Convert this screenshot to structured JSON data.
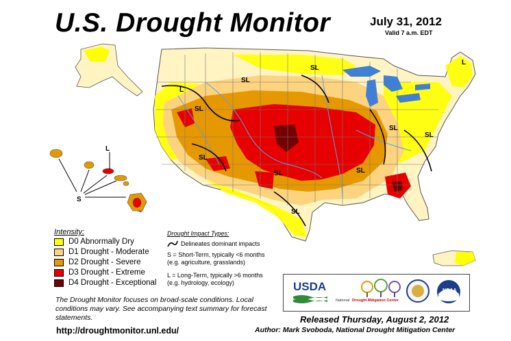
{
  "header": {
    "title": "U.S. Drought Monitor",
    "date": "July 31, 2012",
    "valid": "Valid 7 a.m. EDT"
  },
  "legend": {
    "title": "Intensity:",
    "items": [
      {
        "label": "D0 Abnormally Dry",
        "color": "#ffff00"
      },
      {
        "label": "D1 Drought - Moderate",
        "color": "#fcd37f"
      },
      {
        "label": "D2 Drought - Severe",
        "color": "#e69800"
      },
      {
        "label": "D3 Drought - Extreme",
        "color": "#e60000"
      },
      {
        "label": "D4 Drought - Exceptional",
        "color": "#730000"
      }
    ]
  },
  "impact": {
    "title": "Drought Impact Types:",
    "boundary": "Delineates dominant impacts",
    "short_line1": "S = Short-Term, typically <6 months",
    "short_line2": "(e.g. agriculture, grasslands)",
    "long_line1": "L = Long-Term, typically >6 months",
    "long_line2": "(e.g. hydrology, ecology)"
  },
  "map_labels": {
    "sl": "SL",
    "s": "S",
    "l": "L"
  },
  "notes": "The Drought Monitor focuses on broad-scale conditions. Local conditions may vary. See accompanying text summary for forecast statements.",
  "footer": {
    "url": "http://droughtmonitor.unl.edu/",
    "released": "Released Thursday, August 2, 2012",
    "author": "Author: Mark Svoboda, National Drought Mitigation Center"
  },
  "logos": {
    "usda": "USDA",
    "ndmc_a": "National",
    "ndmc_b": "Drought Mitigation Center",
    "noaa": "NOAA"
  },
  "colors": {
    "water": "#3f7fd6",
    "river": "#5aa0e8",
    "d0": "#ffff00",
    "d1": "#fcd37f",
    "d2": "#e69800",
    "d3": "#e60000",
    "d4": "#730000"
  }
}
